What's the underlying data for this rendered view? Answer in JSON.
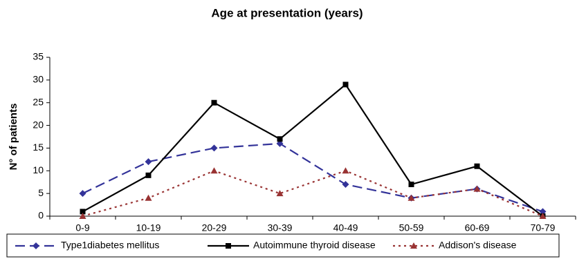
{
  "chart_data": {
    "type": "line",
    "title": "Age at presentation (years)",
    "ylabel": "N° of patients",
    "categories": [
      "0-9",
      "10-19",
      "20-29",
      "30-39",
      "40-49",
      "50-59",
      "60-69",
      "70-79"
    ],
    "ylim": [
      0,
      35
    ],
    "yticks": [
      0,
      5,
      10,
      15,
      20,
      25,
      30,
      35
    ],
    "legend": "bottom",
    "series": [
      {
        "name": "Type1diabetes mellitus",
        "color": "#333399",
        "dash": "dashed",
        "marker": "diamond",
        "values": [
          5,
          12,
          15,
          16,
          7,
          4,
          6,
          1
        ]
      },
      {
        "name": "Autoimmune thyroid disease",
        "color": "#000000",
        "dash": "solid",
        "marker": "square",
        "values": [
          1,
          9,
          25,
          17,
          29,
          7,
          11,
          0
        ]
      },
      {
        "name": "Addison's disease",
        "color": "#993333",
        "dash": "dotted",
        "marker": "triangle",
        "values": [
          0,
          4,
          10,
          5,
          10,
          4,
          6,
          0
        ]
      }
    ]
  }
}
